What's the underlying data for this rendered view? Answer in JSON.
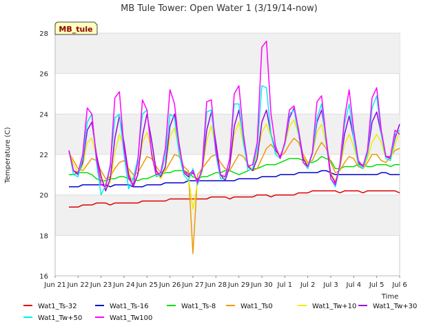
{
  "chart_data": {
    "type": "line",
    "title": "MB Tule Tower: Open Water 1 (3/19/14-now)",
    "xlabel": "Time",
    "ylabel": "Temperature (C)",
    "badge": "MB_tule",
    "xlim": [
      0,
      15
    ],
    "ylim": [
      16,
      28
    ],
    "yticks": [
      16,
      18,
      20,
      22,
      24,
      26,
      28
    ],
    "xticks": [
      {
        "x": 0,
        "label": "Jun 21"
      },
      {
        "x": 1,
        "label": "Jun 22"
      },
      {
        "x": 2,
        "label": "Jun 23"
      },
      {
        "x": 3,
        "label": "Jun 24"
      },
      {
        "x": 4,
        "label": "Jun 25"
      },
      {
        "x": 5,
        "label": "Jun 26"
      },
      {
        "x": 6,
        "label": "Jun 27"
      },
      {
        "x": 7,
        "label": "Jun 28"
      },
      {
        "x": 8,
        "label": "Jun 29"
      },
      {
        "x": 9,
        "label": "Jun 30"
      },
      {
        "x": 10,
        "label": "Jul 1"
      },
      {
        "x": 11,
        "label": "Jul 2"
      },
      {
        "x": 12,
        "label": "Jul 3"
      },
      {
        "x": 13,
        "label": "Jul 4"
      },
      {
        "x": 14,
        "label": "Jul 5"
      },
      {
        "x": 15,
        "label": "Jul 6"
      }
    ],
    "x": [
      0.6,
      0.8,
      1.0,
      1.2,
      1.4,
      1.6,
      1.8,
      2.0,
      2.2,
      2.4,
      2.6,
      2.8,
      3.0,
      3.2,
      3.4,
      3.6,
      3.8,
      4.0,
      4.2,
      4.4,
      4.6,
      4.8,
      5.0,
      5.2,
      5.4,
      5.6,
      5.8,
      6.0,
      6.2,
      6.4,
      6.6,
      6.8,
      7.0,
      7.2,
      7.4,
      7.6,
      7.8,
      8.0,
      8.2,
      8.4,
      8.6,
      8.8,
      9.0,
      9.2,
      9.4,
      9.6,
      9.8,
      10.0,
      10.2,
      10.4,
      10.6,
      10.8,
      11.0,
      11.2,
      11.4,
      11.6,
      11.8,
      12.0,
      12.2,
      12.4,
      12.6,
      12.8,
      13.0,
      13.2,
      13.4,
      13.6,
      13.8,
      14.0,
      14.2,
      14.4,
      14.6,
      14.8,
      15.0
    ],
    "series": [
      {
        "name": "Wat1_Ts-32",
        "color": "#dd0000",
        "values": [
          19.4,
          19.4,
          19.4,
          19.5,
          19.5,
          19.5,
          19.6,
          19.6,
          19.6,
          19.5,
          19.6,
          19.6,
          19.6,
          19.6,
          19.6,
          19.6,
          19.7,
          19.7,
          19.7,
          19.7,
          19.7,
          19.7,
          19.8,
          19.8,
          19.8,
          19.8,
          19.8,
          19.8,
          19.8,
          19.8,
          19.8,
          19.9,
          19.9,
          19.9,
          19.9,
          19.8,
          19.9,
          19.9,
          19.9,
          19.9,
          19.9,
          20.0,
          20.0,
          20.0,
          19.9,
          20.0,
          20.0,
          20.0,
          20.0,
          20.0,
          20.1,
          20.1,
          20.1,
          20.2,
          20.2,
          20.2,
          20.2,
          20.2,
          20.2,
          20.1,
          20.2,
          20.2,
          20.2,
          20.2,
          20.1,
          20.2,
          20.2,
          20.2,
          20.2,
          20.2,
          20.2,
          20.2,
          20.1
        ]
      },
      {
        "name": "Wat1_Ts-16",
        "color": "#0000cc",
        "values": [
          20.4,
          20.4,
          20.4,
          20.5,
          20.5,
          20.5,
          20.5,
          20.5,
          20.5,
          20.4,
          20.5,
          20.5,
          20.5,
          20.5,
          20.4,
          20.4,
          20.4,
          20.5,
          20.5,
          20.5,
          20.5,
          20.6,
          20.6,
          20.6,
          20.6,
          20.6,
          20.7,
          20.7,
          20.7,
          20.7,
          20.7,
          20.7,
          20.7,
          20.7,
          20.7,
          20.7,
          20.7,
          20.8,
          20.8,
          20.8,
          20.8,
          20.8,
          20.9,
          20.9,
          20.9,
          20.9,
          21.0,
          21.0,
          21.0,
          21.0,
          21.1,
          21.1,
          21.1,
          21.1,
          21.1,
          21.2,
          21.2,
          21.1,
          21.0,
          21.0,
          21.0,
          21.0,
          21.0,
          21.0,
          21.0,
          21.0,
          21.0,
          21.0,
          21.1,
          21.1,
          21.0,
          21.0,
          21.0
        ]
      },
      {
        "name": "Wat1_Ts-8",
        "color": "#00dd00",
        "values": [
          21.0,
          21.0,
          21.1,
          21.1,
          21.1,
          21.0,
          20.8,
          20.7,
          20.7,
          20.8,
          20.8,
          20.9,
          20.9,
          20.8,
          20.8,
          20.7,
          20.8,
          20.8,
          20.9,
          21.0,
          21.0,
          21.1,
          21.1,
          21.2,
          21.2,
          21.2,
          21.1,
          20.9,
          20.8,
          20.9,
          20.9,
          21.0,
          21.1,
          21.1,
          21.2,
          21.2,
          21.1,
          21.0,
          21.1,
          21.2,
          21.3,
          21.3,
          21.4,
          21.5,
          21.5,
          21.5,
          21.6,
          21.7,
          21.8,
          21.8,
          21.8,
          21.7,
          21.6,
          21.6,
          21.7,
          21.9,
          21.8,
          21.7,
          21.3,
          21.3,
          21.4,
          21.4,
          21.4,
          21.5,
          21.5,
          21.4,
          21.4,
          21.5,
          21.5,
          21.5,
          21.4,
          21.5,
          21.5
        ]
      },
      {
        "name": "Wat1_Ts0",
        "color": "#ee9900",
        "values": [
          22.1,
          21.7,
          21.3,
          21.2,
          21.5,
          21.8,
          21.7,
          21.2,
          20.8,
          20.9,
          21.3,
          21.6,
          21.7,
          21.3,
          21.0,
          21.1,
          21.5,
          21.9,
          21.8,
          21.4,
          21.1,
          21.2,
          21.6,
          22.0,
          21.9,
          21.4,
          21.2,
          17.1,
          21.0,
          21.3,
          21.6,
          21.9,
          22.0,
          21.6,
          21.3,
          21.2,
          21.6,
          22.0,
          21.9,
          21.5,
          21.2,
          21.3,
          21.8,
          22.3,
          22.5,
          22.2,
          21.9,
          22.1,
          22.5,
          22.8,
          22.6,
          22.0,
          21.6,
          21.7,
          22.2,
          22.6,
          22.3,
          21.6,
          21.1,
          21.2,
          21.6,
          21.9,
          21.8,
          21.4,
          21.3,
          21.6,
          22.0,
          22.0,
          21.7,
          21.6,
          21.9,
          22.2,
          22.3
        ]
      },
      {
        "name": "Wat1_Tw+10",
        "color": "#eeee00",
        "values": [
          22.2,
          21.5,
          21.1,
          21.4,
          22.6,
          22.8,
          21.9,
          21.0,
          20.3,
          20.6,
          22.1,
          23.0,
          22.4,
          21.2,
          20.5,
          21.0,
          22.6,
          23.1,
          22.2,
          21.1,
          20.8,
          21.3,
          22.9,
          23.3,
          22.2,
          21.2,
          20.9,
          19.3,
          20.6,
          21.1,
          22.7,
          23.4,
          22.3,
          21.0,
          20.8,
          21.4,
          23.0,
          23.6,
          22.5,
          21.4,
          21.3,
          22.0,
          23.1,
          23.5,
          22.9,
          22.1,
          21.9,
          22.5,
          23.4,
          23.7,
          23.0,
          21.9,
          21.5,
          22.0,
          23.1,
          23.5,
          22.5,
          21.1,
          20.7,
          21.3,
          22.5,
          23.0,
          22.4,
          21.5,
          21.3,
          21.8,
          22.6,
          23.0,
          22.6,
          21.8,
          21.7,
          22.5,
          23.1
        ]
      },
      {
        "name": "Wat1_Tw+30",
        "color": "#9900dd",
        "values": [
          22.2,
          21.2,
          21.0,
          21.6,
          23.2,
          23.6,
          22.0,
          20.9,
          20.2,
          20.8,
          22.8,
          23.9,
          22.6,
          21.0,
          20.4,
          21.0,
          22.9,
          24.0,
          22.7,
          21.2,
          20.9,
          21.4,
          23.4,
          24.0,
          22.5,
          21.1,
          20.9,
          21.1,
          20.7,
          21.2,
          23.2,
          24.1,
          22.6,
          21.0,
          20.7,
          21.4,
          23.4,
          24.2,
          22.8,
          21.4,
          21.2,
          21.8,
          23.6,
          24.2,
          23.0,
          22.2,
          21.9,
          22.5,
          23.8,
          24.3,
          23.2,
          21.8,
          21.4,
          22.0,
          23.6,
          24.2,
          22.8,
          21.0,
          20.6,
          21.4,
          23.0,
          23.9,
          22.8,
          21.6,
          21.4,
          22.0,
          23.6,
          24.1,
          23.0,
          21.9,
          21.8,
          22.8,
          23.5
        ]
      },
      {
        "name": "Wat1_Tw+50",
        "color": "#00eeee",
        "values": [
          22.2,
          21.0,
          20.9,
          21.8,
          23.6,
          24.0,
          21.6,
          20.0,
          20.5,
          21.5,
          23.8,
          24.0,
          22.0,
          20.3,
          20.8,
          21.8,
          24.0,
          24.2,
          22.1,
          20.9,
          21.0,
          21.9,
          24.0,
          23.8,
          22.0,
          21.0,
          20.7,
          21.3,
          20.5,
          21.2,
          24.1,
          24.2,
          22.0,
          20.8,
          20.8,
          21.8,
          24.5,
          24.5,
          22.6,
          21.2,
          21.3,
          22.3,
          25.4,
          25.3,
          23.0,
          22.0,
          21.8,
          22.5,
          24.0,
          24.2,
          23.0,
          21.6,
          21.3,
          22.0,
          23.8,
          24.5,
          22.6,
          20.8,
          20.4,
          21.4,
          23.5,
          24.5,
          22.8,
          21.5,
          21.3,
          22.0,
          24.3,
          24.9,
          23.0,
          21.8,
          21.7,
          23.0,
          23.2
        ]
      },
      {
        "name": "Wat1_Tw100",
        "color": "#ff00ff",
        "values": [
          22.2,
          21.2,
          21.1,
          22.0,
          24.3,
          24.0,
          21.8,
          20.5,
          20.4,
          21.4,
          24.8,
          25.1,
          22.3,
          20.8,
          20.5,
          21.6,
          24.7,
          24.2,
          22.0,
          21.0,
          21.1,
          22.3,
          25.2,
          24.5,
          22.4,
          21.2,
          21.0,
          21.2,
          20.6,
          21.3,
          24.6,
          24.7,
          22.2,
          21.0,
          20.9,
          21.8,
          25.0,
          25.4,
          23.0,
          21.4,
          21.5,
          22.6,
          27.3,
          27.6,
          24.0,
          22.4,
          21.8,
          22.6,
          24.2,
          24.4,
          23.2,
          21.6,
          21.4,
          22.1,
          24.6,
          24.9,
          22.8,
          20.8,
          20.5,
          21.5,
          23.8,
          25.2,
          23.2,
          21.7,
          21.4,
          22.2,
          24.8,
          25.3,
          23.2,
          21.9,
          21.9,
          23.2,
          23.0
        ]
      }
    ]
  }
}
